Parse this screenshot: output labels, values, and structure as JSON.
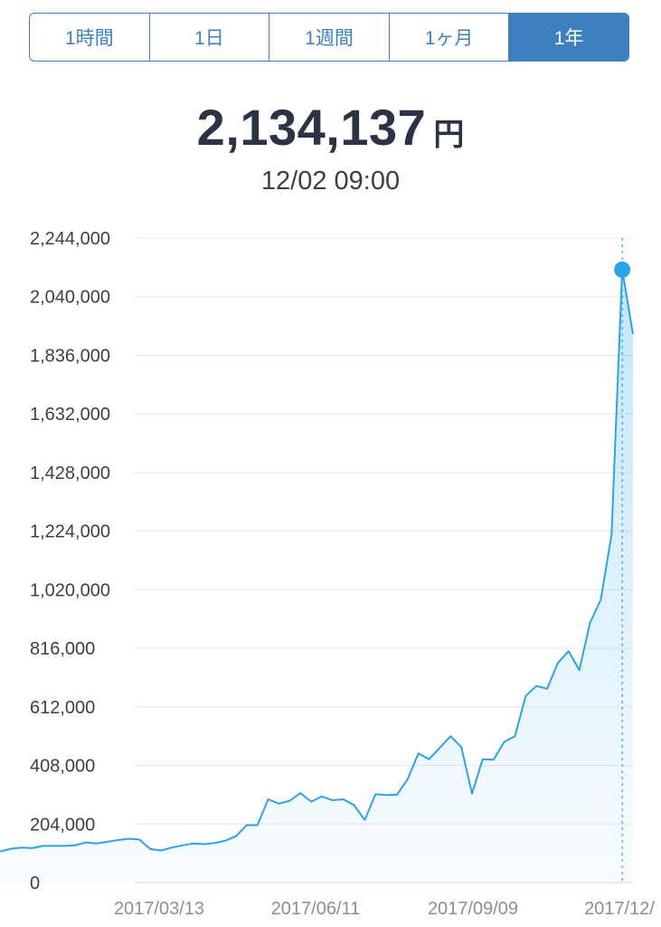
{
  "tabs": [
    {
      "label": "1時間",
      "active": false
    },
    {
      "label": "1日",
      "active": false
    },
    {
      "label": "1週間",
      "active": false
    },
    {
      "label": "1ヶ月",
      "active": false
    },
    {
      "label": "1年",
      "active": true
    }
  ],
  "price": {
    "value": "2,134,137",
    "unit": "円"
  },
  "timestamp": "12/02 09:00",
  "colors": {
    "accent": "#3d7fbf",
    "line": "#2ba3e6"
  },
  "chart_data": {
    "type": "area",
    "title": "",
    "xlabel": "",
    "ylabel": "",
    "ylim": [
      0,
      2244000
    ],
    "y_ticks": [
      0,
      204000,
      408000,
      612000,
      816000,
      1020000,
      1224000,
      1428000,
      1632000,
      1836000,
      2040000,
      2244000
    ],
    "y_tick_labels": [
      "0",
      "204,000",
      "408,000",
      "612,000",
      "816,000",
      "1,020,000",
      "1,224,000",
      "1,428,000",
      "1,632,000",
      "1,836,000",
      "2,040,000",
      "2,244,000"
    ],
    "x_tick_labels": [
      "2017/03/13",
      "2017/06/11",
      "2017/09/09",
      "2017/12/"
    ],
    "grid": true,
    "series": [
      {
        "values": [
          108000,
          118000,
          122000,
          120000,
          128000,
          128000,
          128000,
          130000,
          140000,
          136000,
          142000,
          148000,
          153000,
          150000,
          117000,
          112000,
          122000,
          130000,
          136000,
          134000,
          138000,
          146000,
          162000,
          200000,
          200000,
          290000,
          275000,
          285000,
          312000,
          282000,
          300000,
          287000,
          290000,
          270000,
          218000,
          308000,
          305000,
          306000,
          360000,
          450000,
          430000,
          470000,
          510000,
          472000,
          310000,
          430000,
          428000,
          490000,
          510000,
          650000,
          685000,
          675000,
          765000,
          806000,
          740000,
          905000,
          985000,
          1212000,
          2134137,
          1910000
        ]
      }
    ],
    "highlight": {
      "index": 58,
      "value": 2134137
    }
  }
}
